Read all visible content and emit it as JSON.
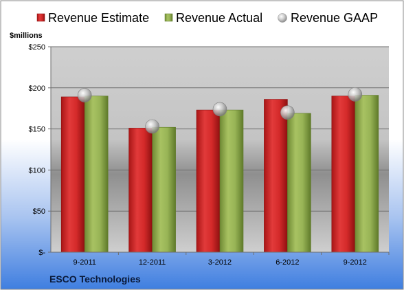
{
  "chart_data": {
    "type": "bar",
    "categories": [
      "9-2011",
      "12-2011",
      "3-2012",
      "6-2012",
      "9-2012"
    ],
    "series": [
      {
        "name": "Revenue Estimate",
        "kind": "bar",
        "color": "#d42a2a",
        "values": [
          189,
          151,
          173,
          186,
          190
        ]
      },
      {
        "name": "Revenue Actual",
        "kind": "bar",
        "color": "#98b456",
        "values": [
          190,
          152,
          173,
          169,
          191
        ]
      },
      {
        "name": "Revenue GAAP",
        "kind": "marker",
        "color": "#c8c8c8",
        "values": [
          191,
          153,
          174,
          170,
          192
        ]
      }
    ],
    "ylabel": "$millions",
    "ylim": [
      0,
      250
    ],
    "yticks": [
      0,
      50,
      100,
      150,
      200,
      250
    ],
    "ytick_labels": [
      "$-",
      "$50",
      "$100",
      "$150",
      "$200",
      "$250"
    ],
    "grid": true,
    "legend": "top",
    "footer": "ESCO Technologies"
  }
}
